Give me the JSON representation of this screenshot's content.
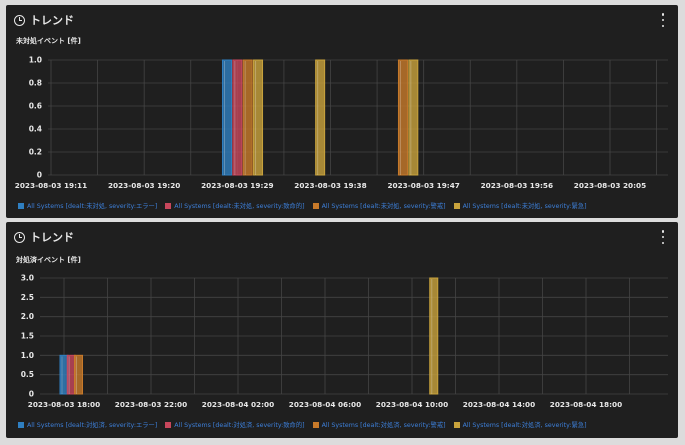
{
  "panels": [
    {
      "title": "トレンド",
      "ylabel": "未対処イベント [件]",
      "legend": [
        {
          "label": "All Systems [dealt:未対処, severity:エラー]",
          "color": "#2f7fc1"
        },
        {
          "label": "All Systems [dealt:未対処, severity:致命的]",
          "color": "#c8475c"
        },
        {
          "label": "All Systems [dealt:未対処, severity:警戒]",
          "color": "#c87a2a"
        },
        {
          "label": "All Systems [dealt:未対処, severity:緊急]",
          "color": "#c9a33c"
        }
      ]
    },
    {
      "title": "トレンド",
      "ylabel": "対処済イベント [件]",
      "legend": [
        {
          "label": "All Systems [dealt:対処済, severity:エラー]",
          "color": "#2f7fc1"
        },
        {
          "label": "All Systems [dealt:対処済, severity:致命的]",
          "color": "#c8475c"
        },
        {
          "label": "All Systems [dealt:対処済, severity:警戒]",
          "color": "#c87a2a"
        },
        {
          "label": "All Systems [dealt:対処済, severity:緊急]",
          "color": "#c9a33c"
        }
      ]
    }
  ],
  "chart_data": [
    {
      "type": "bar",
      "ylabel": "未対処イベント [件]",
      "ylim": [
        0,
        1.0
      ],
      "yticks": [
        "0",
        "0.2",
        "0.4",
        "0.6",
        "0.8",
        "1.0"
      ],
      "x_ticks": [
        "2023-08-03 19:11",
        "2023-08-03 19:20",
        "2023-08-03 19:29",
        "2023-08-03 19:38",
        "2023-08-03 19:47",
        "2023-08-03 19:56",
        "2023-08-03 20:05"
      ],
      "series": [
        {
          "name": "All Systems [dealt:未対処, severity:エラー]",
          "points": [
            {
              "x": "2023-08-03 19:28",
              "y": 1
            }
          ]
        },
        {
          "name": "All Systems [dealt:未対処, severity:致命的]",
          "points": [
            {
              "x": "2023-08-03 19:29",
              "y": 1
            }
          ]
        },
        {
          "name": "All Systems [dealt:未対処, severity:警戒]",
          "points": [
            {
              "x": "2023-08-03 19:30",
              "y": 1
            },
            {
              "x": "2023-08-03 19:45",
              "y": 1
            }
          ]
        },
        {
          "name": "All Systems [dealt:未対処, severity:緊急]",
          "points": [
            {
              "x": "2023-08-03 19:31",
              "y": 1
            },
            {
              "x": "2023-08-03 19:37",
              "y": 1
            },
            {
              "x": "2023-08-03 19:46",
              "y": 1
            }
          ]
        }
      ],
      "grid": true,
      "legend_position": "bottom"
    },
    {
      "type": "bar",
      "ylabel": "対処済イベント [件]",
      "ylim": [
        0,
        3.0
      ],
      "yticks": [
        "0",
        "0.5",
        "1.0",
        "1.5",
        "2.0",
        "2.5",
        "3.0"
      ],
      "x_ticks": [
        "2023-08-03 18:00",
        "2023-08-03 22:00",
        "2023-08-04 02:00",
        "2023-08-04 06:00",
        "2023-08-04 10:00",
        "2023-08-04 14:00",
        "2023-08-04 18:00"
      ],
      "series": [
        {
          "name": "All Systems [dealt:対処済, severity:エラー]",
          "points": [
            {
              "x": "2023-08-03 18:00",
              "y": 1
            }
          ]
        },
        {
          "name": "All Systems [dealt:対処済, severity:致命的]",
          "points": [
            {
              "x": "2023-08-03 18:20",
              "y": 1
            }
          ]
        },
        {
          "name": "All Systems [dealt:対処済, severity:警戒]",
          "points": [
            {
              "x": "2023-08-03 18:40",
              "y": 1
            }
          ]
        },
        {
          "name": "All Systems [dealt:対処済, severity:緊急]",
          "points": [
            {
              "x": "2023-08-04 11:00",
              "y": 3
            }
          ]
        }
      ],
      "grid": true,
      "legend_position": "bottom"
    }
  ]
}
